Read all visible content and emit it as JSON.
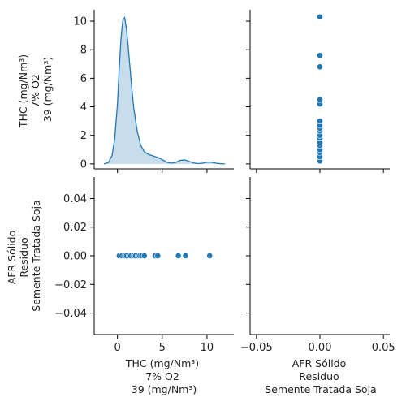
{
  "chart_data": {
    "type": "scatter",
    "kind": "pairplot",
    "colors": {
      "marker": "#1f77b4",
      "kde_fill": "#1f77b4",
      "kde_line": "#1f77b4"
    },
    "variables": [
      {
        "id": "thc",
        "label_lines": [
          "THC (mg/Nm³)",
          "7% O2",
          "39 (mg/Nm³)"
        ]
      },
      {
        "id": "afr",
        "label_lines": [
          "AFR Sólido",
          "Residuo",
          "Semente Tratada Soja"
        ]
      }
    ],
    "thc_values": [
      0.2,
      0.5,
      0.8,
      1.0,
      1.3,
      1.5,
      1.8,
      2.0,
      2.3,
      2.5,
      2.7,
      3.0,
      4.2,
      4.5,
      6.8,
      7.6,
      10.3
    ],
    "afr_values": [
      0,
      0,
      0,
      0,
      0,
      0,
      0,
      0,
      0,
      0,
      0,
      0,
      0,
      0,
      0,
      0,
      0
    ],
    "panels": {
      "top_left": {
        "type": "area",
        "xlim": [
          -2.6,
          13.0
        ],
        "ylim": [
          -0.35,
          10.8
        ],
        "xticks": [
          0,
          5,
          10
        ],
        "yticks": [
          0,
          2,
          4,
          6,
          8,
          10
        ],
        "ytick_labels": [
          "0",
          "2",
          "4",
          "6",
          "8",
          "10"
        ],
        "kde_curve": {
          "x": [
            -1.5,
            -1.0,
            -0.6,
            -0.3,
            0.0,
            0.2,
            0.4,
            0.6,
            0.8,
            1.0,
            1.2,
            1.5,
            1.8,
            2.2,
            2.6,
            3.0,
            3.5,
            4.0,
            4.5,
            5.0,
            5.5,
            6.0,
            6.5,
            7.0,
            7.5,
            8.0,
            8.5,
            9.0,
            9.5,
            10.0,
            10.5,
            11.0,
            11.5,
            12.0
          ],
          "y": [
            0.0,
            0.1,
            0.6,
            1.8,
            4.2,
            6.7,
            8.8,
            10.05,
            10.25,
            9.5,
            8.2,
            6.0,
            4.0,
            2.3,
            1.3,
            0.85,
            0.65,
            0.55,
            0.45,
            0.3,
            0.12,
            0.05,
            0.1,
            0.25,
            0.28,
            0.18,
            0.06,
            0.02,
            0.05,
            0.12,
            0.12,
            0.05,
            0.01,
            0.0
          ]
        }
      },
      "top_right": {
        "type": "scatter",
        "xlim": [
          -0.055,
          0.055
        ],
        "ylim": [
          -0.35,
          10.8
        ],
        "xticks": [
          -0.05,
          0.0,
          0.05
        ],
        "yticks": [
          0,
          2,
          4,
          6,
          8,
          10
        ]
      },
      "bottom_left": {
        "type": "scatter",
        "xlim": [
          -2.6,
          13.0
        ],
        "ylim": [
          -0.055,
          0.055
        ],
        "xticks": [
          0,
          5,
          10
        ],
        "xtick_labels": [
          "0",
          "5",
          "10"
        ],
        "yticks": [
          -0.04,
          -0.02,
          0.0,
          0.02,
          0.04
        ],
        "ytick_labels": [
          "−0.04",
          "−0.02",
          "0.00",
          "0.02",
          "0.04"
        ]
      },
      "bottom_right": {
        "type": "scatter",
        "xlim": [
          -0.055,
          0.055
        ],
        "ylim": [
          -0.055,
          0.055
        ],
        "xticks": [
          -0.05,
          0.0,
          0.05
        ],
        "xtick_labels": [
          "−0.05",
          "0.00",
          "0.05"
        ],
        "yticks": [
          -0.04,
          -0.02,
          0.0,
          0.02,
          0.04
        ]
      }
    }
  }
}
